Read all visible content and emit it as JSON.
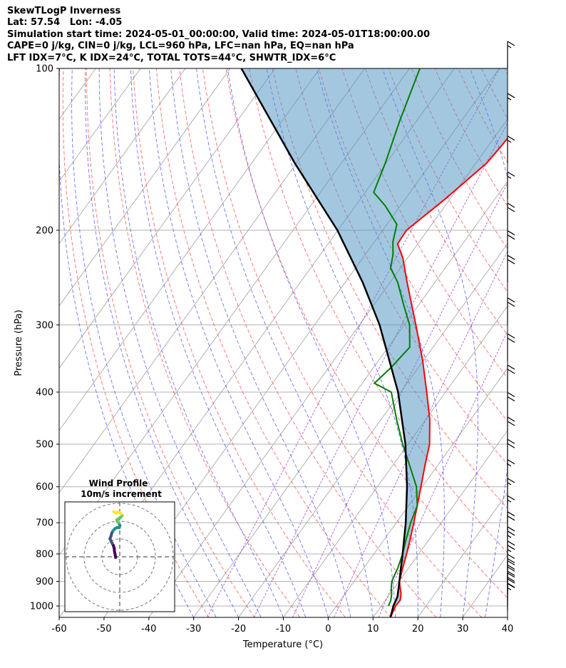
{
  "header": {
    "line1": "SkewTLogP Inverness",
    "line2": "Lat: 57.54   Lon: -4.05",
    "line3": "Simulation start time: 2024-05-01_00:00:00, Valid time: 2024-05-01T18:00:00.00",
    "line4": "CAPE=0 j/kg, CIN=0 j/kg, LCL=960 hPa, LFC=nan hPa, EQ=nan hPa",
    "line5": "LFT IDX=7°C, K IDX=24°C, TOTAL TOTS=44°C, SHWTR_IDX=6°C"
  },
  "chart_data": {
    "type": "line",
    "xlabel": "Temperature (°C)",
    "ylabel": "Pressure (hPa)",
    "xlim": [
      -60,
      40
    ],
    "ylim": [
      1050,
      100
    ],
    "yscale": "log",
    "x_ticks": [
      -60,
      -50,
      -40,
      -30,
      -20,
      -10,
      0,
      10,
      20,
      30,
      40
    ],
    "y_ticks": [
      100,
      200,
      300,
      400,
      500,
      600,
      700,
      800,
      900,
      1000
    ],
    "skew": true,
    "grid": true,
    "series": [
      {
        "kind": "temperature",
        "color": "#ff0000",
        "points": [
          [
            1050,
            13.9
          ],
          [
            1000,
            13.2
          ],
          [
            975,
            13.3
          ],
          [
            950,
            12.5
          ],
          [
            925,
            11.3
          ],
          [
            900,
            10.1
          ],
          [
            850,
            8.7
          ],
          [
            800,
            7.3
          ],
          [
            750,
            5.7
          ],
          [
            700,
            3.9
          ],
          [
            650,
            1.9
          ],
          [
            600,
            -0.3
          ],
          [
            550,
            -2.7
          ],
          [
            500,
            -5.2
          ],
          [
            450,
            -9.1
          ],
          [
            400,
            -14.2
          ],
          [
            350,
            -20.1
          ],
          [
            300,
            -27.4
          ],
          [
            275,
            -31.6
          ],
          [
            250,
            -36.2
          ],
          [
            225,
            -41.1
          ],
          [
            212,
            -44.5
          ],
          [
            200,
            -44.7
          ],
          [
            175,
            -41.1
          ],
          [
            150,
            -37.6
          ],
          [
            140,
            -37.1
          ],
          [
            125,
            -36.6
          ],
          [
            115,
            -36.5
          ],
          [
            105,
            -38.1
          ],
          [
            100,
            -38.4
          ]
        ]
      },
      {
        "kind": "dewpoint",
        "color": "#008000",
        "points": [
          [
            1000,
            11.6
          ],
          [
            975,
            11.2
          ],
          [
            950,
            10.4
          ],
          [
            925,
            9.3
          ],
          [
            900,
            8.4
          ],
          [
            850,
            7.6
          ],
          [
            800,
            6.4
          ],
          [
            750,
            4.8
          ],
          [
            700,
            3.2
          ],
          [
            650,
            1.9
          ],
          [
            600,
            -1.3
          ],
          [
            550,
            -6.0
          ],
          [
            500,
            -11.2
          ],
          [
            450,
            -16.5
          ],
          [
            400,
            -22.1
          ],
          [
            385,
            -27.3
          ],
          [
            360,
            -26.1
          ],
          [
            330,
            -25.2
          ],
          [
            300,
            -28.8
          ],
          [
            275,
            -33.4
          ],
          [
            250,
            -38.3
          ],
          [
            235,
            -42.2
          ],
          [
            222,
            -43.8
          ],
          [
            210,
            -45.9
          ],
          [
            195,
            -47.8
          ],
          [
            180,
            -53.4
          ],
          [
            170,
            -58.1
          ],
          [
            150,
            -60.2
          ],
          [
            125,
            -63.8
          ],
          [
            100,
            -67.7
          ]
        ]
      },
      {
        "kind": "parcel",
        "color": "#000000",
        "points": [
          [
            1050,
            13.9
          ],
          [
            1000,
            12.7
          ],
          [
            960,
            12.1
          ],
          [
            900,
            10.1
          ],
          [
            850,
            8.3
          ],
          [
            800,
            6.4
          ],
          [
            700,
            2.1
          ],
          [
            600,
            -3.4
          ],
          [
            500,
            -10.6
          ],
          [
            400,
            -20.6
          ],
          [
            300,
            -35.5
          ],
          [
            250,
            -46.1
          ],
          [
            200,
            -60.1
          ],
          [
            150,
            -80.4
          ],
          [
            100,
            -107.5
          ]
        ]
      }
    ],
    "wind_barbs": [
      {
        "p": 1020,
        "speed_kt": 15
      },
      {
        "p": 1000,
        "speed_kt": 20
      },
      {
        "p": 975,
        "speed_kt": 20
      },
      {
        "p": 950,
        "speed_kt": 20
      },
      {
        "p": 925,
        "speed_kt": 20
      },
      {
        "p": 900,
        "speed_kt": 20
      },
      {
        "p": 850,
        "speed_kt": 25
      },
      {
        "p": 800,
        "speed_kt": 25
      },
      {
        "p": 750,
        "speed_kt": 20
      },
      {
        "p": 700,
        "speed_kt": 15
      },
      {
        "p": 650,
        "speed_kt": 15
      },
      {
        "p": 600,
        "speed_kt": 15
      },
      {
        "p": 550,
        "speed_kt": 20
      },
      {
        "p": 500,
        "speed_kt": 20
      },
      {
        "p": 450,
        "speed_kt": 20
      },
      {
        "p": 400,
        "speed_kt": 20
      },
      {
        "p": 350,
        "speed_kt": 20
      },
      {
        "p": 300,
        "speed_kt": 20
      },
      {
        "p": 250,
        "speed_kt": 20
      },
      {
        "p": 225,
        "speed_kt": 20
      },
      {
        "p": 200,
        "speed_kt": 20
      },
      {
        "p": 175,
        "speed_kt": 15
      },
      {
        "p": 150,
        "speed_kt": 15
      },
      {
        "p": 125,
        "speed_kt": 15
      },
      {
        "p": 100,
        "speed_kt": 15
      }
    ],
    "hodograph": {
      "title": "Wind Profile",
      "subtitle": "10m/s increment",
      "points_uv": [
        [
          -2.3,
          -0.4
        ],
        [
          -2.6,
          1.3
        ],
        [
          -3.0,
          3.2
        ],
        [
          -3.1,
          4.7
        ],
        [
          -3.6,
          6.4
        ],
        [
          -4.2,
          7.4
        ],
        [
          -4.8,
          8.7
        ],
        [
          -5.5,
          10.1
        ],
        [
          -4.9,
          11.6
        ],
        [
          -4.5,
          13.2
        ],
        [
          -3.8,
          14.6
        ],
        [
          -2.8,
          15.7
        ],
        [
          -1.6,
          16.4
        ],
        [
          -0.3,
          16.3
        ],
        [
          0.1,
          17.5
        ],
        [
          -0.6,
          19.1
        ],
        [
          -1.4,
          19.7
        ],
        [
          -1.6,
          20.8
        ],
        [
          0.5,
          22.1
        ],
        [
          1.3,
          23.2
        ],
        [
          0.9,
          23.9
        ],
        [
          0.0,
          24.8
        ],
        [
          -1.1,
          25.1
        ],
        [
          -2.0,
          24.5
        ],
        [
          -3.4,
          25.4
        ]
      ]
    }
  }
}
